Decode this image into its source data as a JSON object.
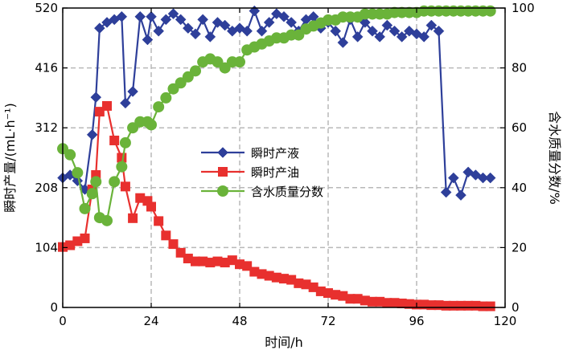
{
  "chart_data": {
    "type": "line",
    "xlabel": "时间/h",
    "ylabel_left": "瞬时产量/(mL·h⁻¹)",
    "ylabel_right": "含水质量分数/%",
    "xlim": [
      0,
      120
    ],
    "ylim_left": [
      0,
      520
    ],
    "ylim_right": [
      0,
      100
    ],
    "x_ticks": [
      0,
      24,
      48,
      72,
      96,
      120
    ],
    "y_left_ticks": [
      0,
      104,
      208,
      312,
      416,
      520
    ],
    "y_right_ticks": [
      0,
      20,
      40,
      60,
      80,
      100
    ],
    "grid": true,
    "legend_position": "center",
    "series": [
      {
        "name": "瞬时产液",
        "axis": "left",
        "color": "#2e3f9a",
        "marker": "diamond",
        "x": [
          0,
          2,
          4,
          6,
          8,
          9,
          10,
          12,
          14,
          16,
          17,
          19,
          21,
          23,
          24,
          26,
          28,
          30,
          32,
          34,
          36,
          38,
          40,
          42,
          44,
          46,
          48,
          50,
          52,
          54,
          56,
          58,
          60,
          62,
          64,
          66,
          68,
          70,
          72,
          74,
          76,
          78,
          80,
          82,
          84,
          86,
          88,
          90,
          92,
          94,
          96,
          98,
          100,
          102,
          104,
          106,
          108,
          110,
          112,
          114,
          116
        ],
        "values": [
          225,
          230,
          220,
          205,
          300,
          365,
          485,
          495,
          500,
          505,
          355,
          375,
          505,
          465,
          505,
          480,
          500,
          510,
          500,
          485,
          475,
          500,
          470,
          495,
          490,
          480,
          485,
          480,
          515,
          480,
          495,
          510,
          505,
          495,
          480,
          500,
          505,
          485,
          495,
          480,
          460,
          500,
          470,
          495,
          480,
          470,
          490,
          480,
          470,
          480,
          475,
          470,
          490,
          480,
          200,
          225,
          195,
          235,
          230,
          225,
          225
        ]
      },
      {
        "name": "瞬时产油",
        "axis": "left",
        "color": "#e8302e",
        "marker": "square",
        "x": [
          0,
          2,
          4,
          6,
          8,
          9,
          10,
          12,
          14,
          16,
          17,
          19,
          21,
          23,
          24,
          26,
          28,
          30,
          32,
          34,
          36,
          38,
          40,
          42,
          44,
          46,
          48,
          50,
          52,
          54,
          56,
          58,
          60,
          62,
          64,
          66,
          68,
          70,
          72,
          74,
          76,
          78,
          80,
          82,
          84,
          86,
          88,
          90,
          92,
          94,
          96,
          98,
          100,
          102,
          104,
          106,
          108,
          110,
          112,
          114,
          116
        ],
        "values": [
          105,
          108,
          115,
          120,
          205,
          230,
          340,
          350,
          290,
          260,
          210,
          155,
          190,
          185,
          175,
          150,
          125,
          110,
          95,
          85,
          80,
          80,
          78,
          80,
          78,
          82,
          75,
          72,
          62,
          58,
          55,
          52,
          50,
          48,
          42,
          40,
          35,
          28,
          25,
          22,
          20,
          15,
          15,
          12,
          10,
          10,
          8,
          8,
          7,
          6,
          5,
          5,
          4,
          4,
          3,
          3,
          3,
          3,
          3,
          2,
          2
        ]
      },
      {
        "name": "含水质量分数",
        "axis": "right",
        "color": "#6ab33a",
        "marker": "circle",
        "x": [
          0,
          2,
          4,
          6,
          8,
          9,
          10,
          12,
          14,
          16,
          17,
          19,
          21,
          23,
          24,
          26,
          28,
          30,
          32,
          34,
          36,
          38,
          40,
          42,
          44,
          46,
          48,
          50,
          52,
          54,
          56,
          58,
          60,
          62,
          64,
          66,
          68,
          70,
          72,
          74,
          76,
          78,
          80,
          82,
          84,
          86,
          88,
          90,
          92,
          94,
          96,
          98,
          100,
          102,
          104,
          106,
          108,
          110,
          112,
          114,
          116
        ],
        "values": [
          53,
          51,
          45,
          33,
          38,
          42,
          30,
          29,
          42,
          47,
          55,
          60,
          62,
          62,
          61,
          67,
          70,
          73,
          75,
          77,
          79,
          82,
          83,
          82,
          80,
          82,
          82,
          86,
          87,
          88,
          89,
          90,
          90,
          91,
          91,
          93,
          94,
          95,
          96,
          96,
          97,
          97,
          97,
          98,
          98,
          98,
          98,
          98.5,
          98.5,
          98.5,
          98.5,
          99,
          99,
          99,
          99,
          99,
          99,
          99,
          99,
          99,
          99
        ]
      }
    ]
  }
}
